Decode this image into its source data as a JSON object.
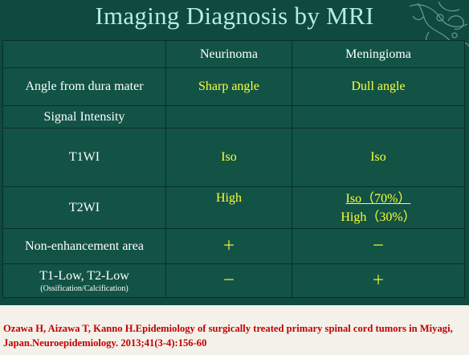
{
  "title": "Imaging Diagnosis by MRI",
  "columns": [
    "Neurinoma",
    "Meningioma"
  ],
  "rows": [
    {
      "label": "Angle from dura mater",
      "neurinoma": "Sharp angle",
      "meningioma": "Dull angle"
    },
    {
      "label": "Signal Intensity",
      "neurinoma": "",
      "meningioma": ""
    },
    {
      "label": "T1WI",
      "neurinoma": "Iso",
      "meningioma": "Iso"
    },
    {
      "label": "T2WI",
      "neurinoma": "High",
      "meningioma_line1": "Iso（70%）",
      "meningioma_line2": "High（30%）"
    },
    {
      "label": "Non-enhancement area",
      "neurinoma": "＋",
      "meningioma": "－"
    },
    {
      "label": "T1-Low, T2-Low",
      "sublabel": "(Ossification/Calcification)",
      "neurinoma": "－",
      "meningioma": "＋"
    }
  ],
  "citation": "Ozawa H, Aizawa T, Kanno H.Epidemiology of surgically treated primary spinal cord tumors in Miyagi, Japan.Neuroepidemiology. 2013;41(3-4):156-60",
  "colors": {
    "background": "#0e4a40",
    "cell": "#125346",
    "title": "#b6ece2",
    "values": "#ffff33",
    "citation": "#c00000"
  }
}
